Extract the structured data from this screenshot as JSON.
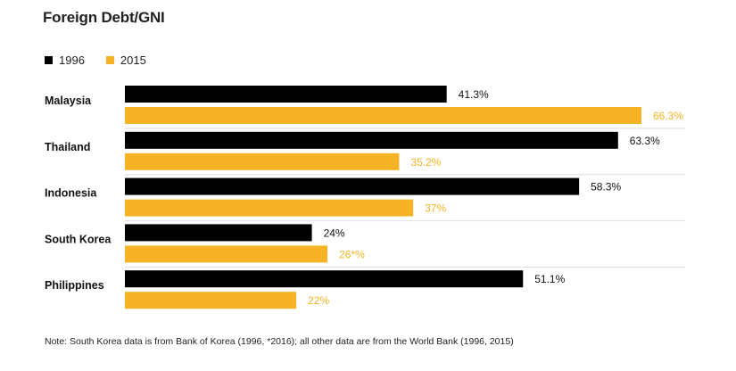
{
  "colors": {
    "series_1996": "#000000",
    "series_2015": "#f5b325",
    "divider": "#dddddd"
  },
  "title": "Foreign Debt/GNI",
  "legend": [
    {
      "label": "1996",
      "color": "#000000"
    },
    {
      "label": "2015",
      "color": "#f5b325"
    }
  ],
  "note": "Note: South Korea data is from Bank of Korea (1996, *2016); all other data are from the World Bank (1996, 2015)",
  "chart_data": {
    "type": "bar",
    "orientation": "horizontal",
    "title": "Foreign Debt/GNI",
    "categories": [
      "Malaysia",
      "Thailand",
      "Indonesia",
      "South Korea",
      "Philippines"
    ],
    "series": [
      {
        "name": "1996",
        "values": [
          41.3,
          63.3,
          58.3,
          24,
          51.1
        ],
        "labels": [
          "41.3%",
          "63.3%",
          "58.3%",
          "24%",
          "51.1%"
        ],
        "color": "#000000"
      },
      {
        "name": "2015",
        "values": [
          66.3,
          35.2,
          37,
          26,
          22
        ],
        "labels": [
          "66.3%",
          "35.2%",
          "37%",
          "26*%",
          "22%"
        ],
        "color": "#f5b325"
      }
    ],
    "xlim": [
      0,
      66.3
    ],
    "grid": false,
    "legend_position": "top-left"
  }
}
